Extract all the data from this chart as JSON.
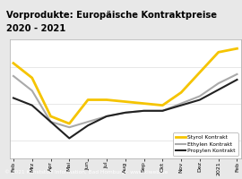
{
  "title_line1": "Vorprodukte: Europäische Kontraktpreise",
  "title_line2": "2020 - 2021",
  "title_bg": "#f5c400",
  "x_labels": [
    "Feb",
    "Mrz",
    "Apr",
    "Mai",
    "Jun",
    "Jul",
    "Aug",
    "Sep",
    "Okt",
    "Nov",
    "Dez",
    "2021",
    "Feb"
  ],
  "styrol": [
    1020,
    940,
    730,
    690,
    820,
    820,
    810,
    800,
    790,
    860,
    970,
    1080,
    1100
  ],
  "ethylen": [
    950,
    870,
    700,
    670,
    700,
    730,
    750,
    760,
    760,
    800,
    840,
    910,
    960
  ],
  "propylen": [
    830,
    790,
    700,
    610,
    680,
    730,
    750,
    760,
    760,
    790,
    820,
    875,
    930
  ],
  "styrol_color": "#f5c400",
  "ethylen_color": "#aaaaaa",
  "propylen_color": "#222222",
  "footer": "© 2021 Kunststoff Information, Bad Homburg - www.kiweb.de",
  "footer_bg": "#888888",
  "legend_labels": [
    "Styrol Kontrakt",
    "Ethylen Kontrakt",
    "Propylen Kontrakt"
  ],
  "ylim": [
    500,
    1150
  ],
  "grid_color": "#dddddd",
  "plot_bg": "#ffffff",
  "outer_bg": "#e8e8e8",
  "frame_color": "#aaaaaa"
}
